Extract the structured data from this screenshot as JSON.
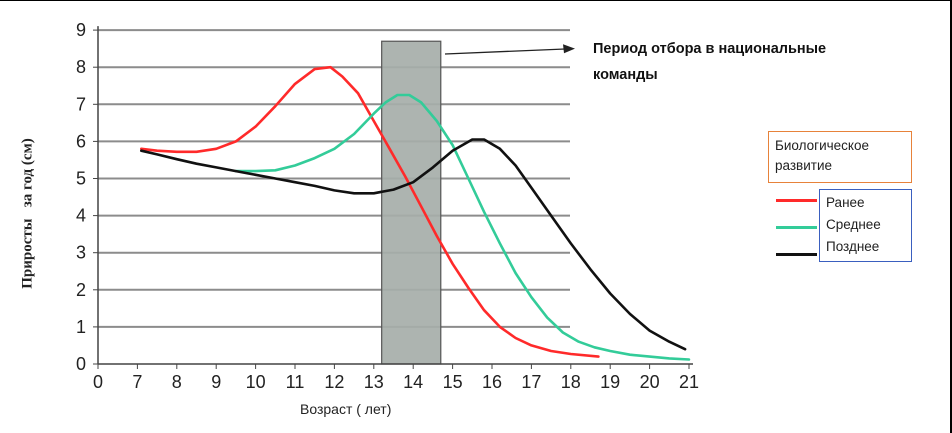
{
  "chart_data": {
    "type": "line",
    "title": "",
    "xlabel": "Возраст ( лет)",
    "ylabel": "Приросты   за год (см)",
    "xlim": [
      0,
      21
    ],
    "ylim": [
      0,
      9
    ],
    "x_ticks": [
      0,
      7,
      8,
      9,
      10,
      11,
      12,
      13,
      14,
      15,
      16,
      17,
      18,
      19,
      20,
      21
    ],
    "y_ticks": [
      0,
      1,
      2,
      3,
      4,
      5,
      6,
      7,
      8,
      9
    ],
    "grid": true,
    "shaded_band": {
      "x_from": 13.2,
      "x_to": 14.7,
      "y_top": 8.7,
      "color": "#a6aea9"
    },
    "annotation": "Период отбора в национальные команды",
    "legend_title": "Биологическое развитие",
    "legend_position": "right",
    "series": [
      {
        "name": "Ранее",
        "color": "#ff2a2a",
        "points": [
          [
            7.1,
            5.8
          ],
          [
            7.5,
            5.75
          ],
          [
            8,
            5.72
          ],
          [
            8.5,
            5.72
          ],
          [
            9,
            5.8
          ],
          [
            9.5,
            6.0
          ],
          [
            10,
            6.4
          ],
          [
            10.5,
            6.95
          ],
          [
            11,
            7.55
          ],
          [
            11.5,
            7.95
          ],
          [
            11.9,
            8.0
          ],
          [
            12.2,
            7.75
          ],
          [
            12.6,
            7.3
          ],
          [
            13,
            6.55
          ],
          [
            13.4,
            5.8
          ],
          [
            13.8,
            5.05
          ],
          [
            14.2,
            4.25
          ],
          [
            14.6,
            3.45
          ],
          [
            15,
            2.7
          ],
          [
            15.4,
            2.05
          ],
          [
            15.8,
            1.45
          ],
          [
            16.2,
            1.0
          ],
          [
            16.6,
            0.7
          ],
          [
            17,
            0.5
          ],
          [
            17.5,
            0.35
          ],
          [
            18,
            0.27
          ],
          [
            18.7,
            0.2
          ]
        ]
      },
      {
        "name": "Среднее",
        "color": "#33cc99",
        "points": [
          [
            9.5,
            5.2
          ],
          [
            10,
            5.2
          ],
          [
            10.5,
            5.22
          ],
          [
            11,
            5.35
          ],
          [
            11.5,
            5.55
          ],
          [
            12,
            5.8
          ],
          [
            12.5,
            6.2
          ],
          [
            13,
            6.75
          ],
          [
            13.3,
            7.05
          ],
          [
            13.6,
            7.25
          ],
          [
            13.9,
            7.25
          ],
          [
            14.2,
            7.05
          ],
          [
            14.6,
            6.55
          ],
          [
            15,
            5.9
          ],
          [
            15.4,
            5.0
          ],
          [
            15.8,
            4.1
          ],
          [
            16.2,
            3.25
          ],
          [
            16.6,
            2.45
          ],
          [
            17,
            1.8
          ],
          [
            17.4,
            1.25
          ],
          [
            17.8,
            0.85
          ],
          [
            18.2,
            0.6
          ],
          [
            18.6,
            0.45
          ],
          [
            19,
            0.35
          ],
          [
            19.5,
            0.25
          ],
          [
            20,
            0.2
          ],
          [
            20.5,
            0.15
          ],
          [
            21,
            0.12
          ]
        ]
      },
      {
        "name": "Позднее",
        "color": "#111111",
        "points": [
          [
            7.1,
            5.75
          ],
          [
            7.5,
            5.65
          ],
          [
            8,
            5.52
          ],
          [
            8.5,
            5.4
          ],
          [
            9,
            5.3
          ],
          [
            9.5,
            5.2
          ],
          [
            10,
            5.1
          ],
          [
            10.5,
            5.0
          ],
          [
            11,
            4.9
          ],
          [
            11.5,
            4.8
          ],
          [
            12,
            4.68
          ],
          [
            12.5,
            4.6
          ],
          [
            13,
            4.6
          ],
          [
            13.5,
            4.7
          ],
          [
            14,
            4.9
          ],
          [
            14.5,
            5.3
          ],
          [
            15,
            5.75
          ],
          [
            15.5,
            6.05
          ],
          [
            15.8,
            6.05
          ],
          [
            16.2,
            5.8
          ],
          [
            16.6,
            5.35
          ],
          [
            17,
            4.75
          ],
          [
            17.5,
            4.0
          ],
          [
            18,
            3.25
          ],
          [
            18.5,
            2.55
          ],
          [
            19,
            1.9
          ],
          [
            19.5,
            1.35
          ],
          [
            20,
            0.9
          ],
          [
            20.5,
            0.6
          ],
          [
            20.9,
            0.4
          ]
        ]
      }
    ]
  }
}
